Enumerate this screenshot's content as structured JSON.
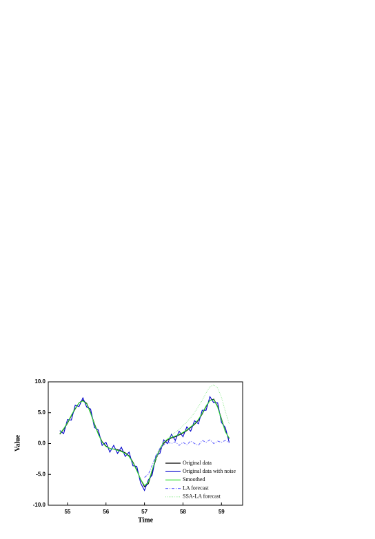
{
  "chart_data": {
    "type": "line",
    "x_label": "Time",
    "y_label": "Value",
    "x": [
      54.8,
      54.9,
      55.0,
      55.1,
      55.2,
      55.3,
      55.4,
      55.5,
      55.6,
      55.7,
      55.8,
      55.9,
      56.0,
      56.1,
      56.2,
      56.3,
      56.4,
      56.5,
      56.6,
      56.7,
      56.8,
      56.9,
      57.0,
      57.1,
      57.2,
      57.3,
      57.4,
      57.5,
      57.6,
      57.7,
      57.8,
      57.9,
      58.0,
      58.1,
      58.2,
      58.3,
      58.4,
      58.5,
      58.6,
      58.7,
      58.8,
      58.9,
      59.0,
      59.1,
      59.2
    ],
    "series": [
      {
        "name": "Original data",
        "color": "#000000",
        "dash": "none",
        "values": [
          1.5,
          2.3,
          3.3,
          4.5,
          5.6,
          6.6,
          7.0,
          6.5,
          5.0,
          3.2,
          1.6,
          0.3,
          -0.4,
          -0.8,
          -0.9,
          -1.0,
          -1.2,
          -1.5,
          -2.0,
          -3.0,
          -4.3,
          -5.8,
          -7.0,
          -6.5,
          -4.5,
          -2.5,
          -1.0,
          0.0,
          0.6,
          0.9,
          1.1,
          1.4,
          1.7,
          2.1,
          2.6,
          3.1,
          3.8,
          4.8,
          6.0,
          7.0,
          7.2,
          6.0,
          4.0,
          2.0,
          0.8
        ]
      },
      {
        "name": "Original data with noise",
        "color": "#0000cc",
        "dash": "none",
        "values": [
          2.1,
          1.6,
          3.9,
          3.8,
          6.2,
          6.0,
          7.4,
          5.9,
          5.6,
          2.6,
          2.2,
          -0.3,
          0.2,
          -1.4,
          -0.3,
          -1.6,
          -0.6,
          -2.1,
          -1.4,
          -3.6,
          -3.7,
          -6.4,
          -7.6,
          -5.9,
          -5.1,
          -1.9,
          -1.6,
          0.6,
          0.0,
          1.5,
          0.5,
          2.0,
          1.1,
          2.7,
          2.0,
          3.7,
          3.2,
          5.4,
          5.4,
          7.6,
          6.6,
          6.6,
          3.4,
          2.6,
          0.2
        ]
      },
      {
        "name": "Smoothed",
        "color": "#33dd33",
        "dash": "none",
        "values": [
          1.6,
          2.4,
          3.4,
          4.6,
          5.7,
          6.6,
          6.9,
          6.4,
          4.9,
          3.1,
          1.5,
          0.2,
          -0.5,
          -0.8,
          -0.9,
          -1.1,
          -1.3,
          -1.6,
          -2.1,
          -3.1,
          -4.4,
          -5.8,
          -6.8,
          -6.3,
          -4.3,
          -2.3,
          -0.8,
          0.2,
          0.7,
          1.0,
          1.2,
          1.5,
          1.8,
          2.2,
          2.7,
          3.2,
          3.9,
          4.9,
          6.1,
          7.0,
          7.1,
          5.9,
          3.9,
          1.9,
          0.9
        ]
      },
      {
        "name": "LA forecast",
        "color": "#6666ff",
        "dash": "4 2 1 2",
        "values": [
          null,
          null,
          null,
          null,
          null,
          null,
          null,
          null,
          null,
          null,
          null,
          null,
          null,
          null,
          null,
          null,
          null,
          null,
          null,
          null,
          null,
          null,
          -5.5,
          -5.0,
          -3.5,
          -2.0,
          -0.8,
          -0.2,
          0.2,
          0.0,
          0.3,
          -0.3,
          0.2,
          -0.2,
          0.4,
          0.0,
          -0.3,
          0.5,
          0.2,
          0.6,
          0.0,
          0.4,
          0.2,
          0.5,
          0.1
        ]
      },
      {
        "name": "SSA-LA forecast",
        "color": "#99ee99",
        "dash": "1 1.5",
        "values": [
          null,
          null,
          null,
          null,
          null,
          null,
          null,
          null,
          null,
          null,
          null,
          null,
          null,
          null,
          null,
          null,
          null,
          null,
          null,
          null,
          null,
          null,
          null,
          null,
          null,
          -2.5,
          -1.0,
          0.2,
          0.8,
          1.3,
          1.8,
          2.3,
          2.9,
          3.5,
          4.2,
          5.0,
          6.0,
          7.0,
          8.2,
          9.2,
          9.5,
          9.0,
          7.5,
          5.2,
          3.2
        ]
      }
    ],
    "xlim": [
      54.5,
      59.55
    ],
    "xticks": [
      55,
      56,
      57,
      58,
      59
    ],
    "ylim": [
      -10,
      10
    ],
    "yticks": [
      {
        "value": -10,
        "label": "-10.0"
      },
      {
        "value": -5,
        "label": "-5.0"
      },
      {
        "value": 0,
        "label": "0.0"
      },
      {
        "value": 5,
        "label": "5.0"
      },
      {
        "value": 10,
        "label": "10.0"
      }
    ],
    "legend": "lower right",
    "grid": false
  }
}
